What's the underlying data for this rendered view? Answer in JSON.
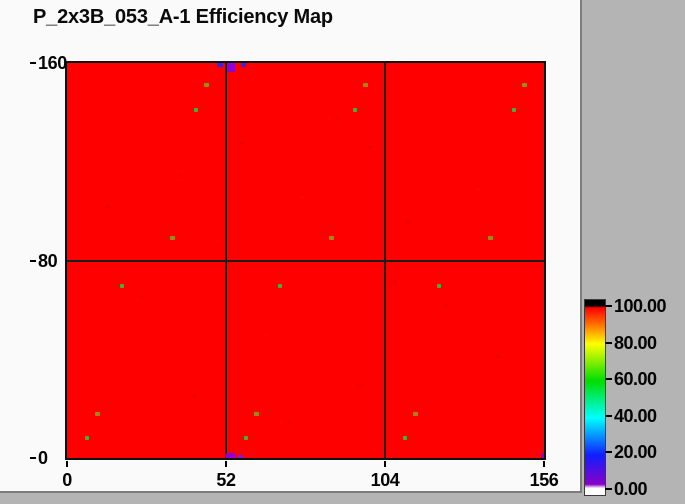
{
  "window": {
    "panel_background": "#b4b4b4",
    "pane_background": "#fafafa",
    "divider_color": "#7d7d7d"
  },
  "chart_data": {
    "type": "heatmap",
    "title": "P_2x3B_053_A-1 Efficiency Map",
    "xlabel": "",
    "ylabel": "",
    "xlim": [
      0,
      156
    ],
    "ylim": [
      0,
      160
    ],
    "x_ticks": [
      0,
      52,
      104,
      156
    ],
    "y_ticks": [
      160,
      80,
      0
    ],
    "grid_x": [
      52,
      104
    ],
    "grid_y": [
      80
    ],
    "grid_on": true,
    "background_value": 100,
    "map_color": "#fe0000",
    "module_layout": {
      "columns": 3,
      "rows": 2,
      "module_width": 52,
      "module_height": 80
    },
    "colorbar": {
      "min": 0,
      "max": 100,
      "tick_labels": [
        "100.00",
        "80.00",
        "60.00",
        "40.00",
        "20.00",
        "0.00"
      ],
      "tick_values": [
        100,
        80,
        60,
        40,
        20,
        0
      ],
      "over_range_color": "#000000",
      "under_range_color": "#ffffff",
      "gradient_colors": [
        "#ff0000",
        "#ff7700",
        "#ffff00",
        "#00dd00",
        "#00ffff",
        "#0f1fff",
        "#8800c8"
      ],
      "position": "right"
    },
    "palette": {
      "olive": "#9c8c12",
      "green": "#3eb43e",
      "blue": "#3a22ee",
      "purple": "#9100d6",
      "violet": "#7a1fd8",
      "speckle": "#e90000"
    },
    "low_efficiency_points": [
      {
        "x": 45.5,
        "y": 151.2,
        "value": 78,
        "color": "olive",
        "w": 5,
        "h": 4
      },
      {
        "x": 97.5,
        "y": 151.2,
        "value": 78,
        "color": "olive",
        "w": 5,
        "h": 4
      },
      {
        "x": 149.5,
        "y": 151.2,
        "value": 78,
        "color": "olive",
        "w": 5,
        "h": 4
      },
      {
        "x": 34.5,
        "y": 89,
        "value": 78,
        "color": "olive",
        "w": 5,
        "h": 4
      },
      {
        "x": 86.5,
        "y": 89,
        "value": 78,
        "color": "olive",
        "w": 5,
        "h": 4
      },
      {
        "x": 138.5,
        "y": 89,
        "value": 78,
        "color": "olive",
        "w": 5,
        "h": 4
      },
      {
        "x": 10,
        "y": 17.8,
        "value": 78,
        "color": "olive",
        "w": 5,
        "h": 4
      },
      {
        "x": 62,
        "y": 17.8,
        "value": 78,
        "color": "olive",
        "w": 5,
        "h": 4
      },
      {
        "x": 114,
        "y": 17.8,
        "value": 78,
        "color": "olive",
        "w": 5,
        "h": 4
      },
      {
        "x": 42.2,
        "y": 141,
        "value": 62,
        "color": "green",
        "w": 4,
        "h": 4
      },
      {
        "x": 94.2,
        "y": 141,
        "value": 62,
        "color": "green",
        "w": 4,
        "h": 4
      },
      {
        "x": 146.2,
        "y": 141,
        "value": 62,
        "color": "green",
        "w": 4,
        "h": 4
      },
      {
        "x": 18,
        "y": 69.5,
        "value": 62,
        "color": "green",
        "w": 4,
        "h": 4
      },
      {
        "x": 69.8,
        "y": 69.5,
        "value": 62,
        "color": "green",
        "w": 4,
        "h": 4
      },
      {
        "x": 121.6,
        "y": 69.5,
        "value": 62,
        "color": "green",
        "w": 4,
        "h": 4
      },
      {
        "x": 6.6,
        "y": 8.1,
        "value": 62,
        "color": "green",
        "w": 4,
        "h": 4
      },
      {
        "x": 58.6,
        "y": 8.1,
        "value": 62,
        "color": "green",
        "w": 4,
        "h": 4
      },
      {
        "x": 110.4,
        "y": 8.1,
        "value": 62,
        "color": "green",
        "w": 4,
        "h": 4
      },
      {
        "x": 50.2,
        "y": 159.3,
        "value": 15,
        "color": "blue",
        "w": 6,
        "h": 4
      },
      {
        "x": 53.6,
        "y": 158.2,
        "value": 8,
        "color": "purple",
        "w": 8,
        "h": 9
      },
      {
        "x": 57.7,
        "y": 159.3,
        "value": 15,
        "color": "blue",
        "w": 5,
        "h": 4
      },
      {
        "x": 53.6,
        "y": 1.2,
        "value": 8,
        "color": "purple",
        "w": 9,
        "h": 5
      },
      {
        "x": 56.6,
        "y": 0.6,
        "value": 12,
        "color": "violet",
        "w": 5,
        "h": 3
      },
      {
        "x": 155.7,
        "y": 0.8,
        "value": 8,
        "color": "purple",
        "w": 5,
        "h": 7
      }
    ],
    "noise_speckles": [
      [
        0.36,
        0.2
      ],
      [
        0.23,
        0.28
      ],
      [
        0.49,
        0.33
      ],
      [
        0.31,
        0.46
      ],
      [
        0.56,
        0.14
      ],
      [
        0.71,
        0.4
      ],
      [
        0.63,
        0.21
      ],
      [
        0.86,
        0.31
      ],
      [
        0.15,
        0.59
      ],
      [
        0.41,
        0.67
      ],
      [
        0.79,
        0.61
      ],
      [
        0.9,
        0.74
      ],
      [
        0.26,
        0.84
      ],
      [
        0.61,
        0.81
      ],
      [
        0.08,
        0.36
      ],
      [
        0.46,
        0.91
      ],
      [
        0.94,
        0.12
      ],
      [
        0.68,
        0.55
      ]
    ]
  }
}
